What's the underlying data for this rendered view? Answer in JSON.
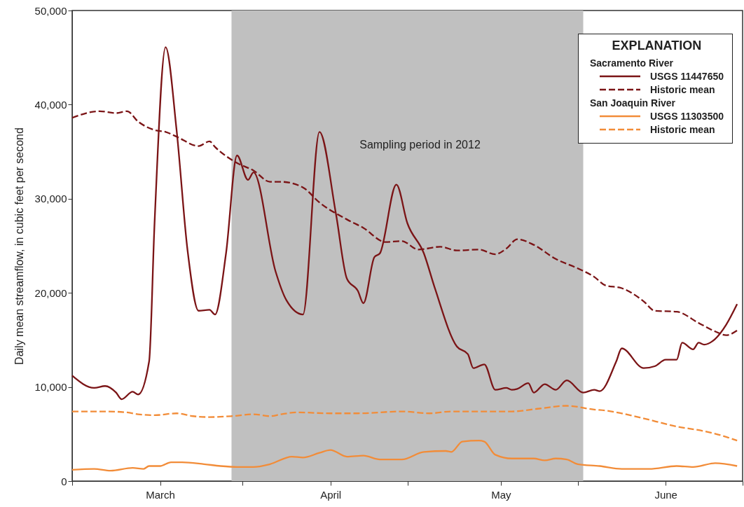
{
  "chart_data": {
    "type": "line",
    "xlabel": null,
    "ylabel": "Daily mean streamflow, in cubic feet per second",
    "legend_title": "EXPLANATION",
    "annotations": [
      "Sacramento River",
      "San Joaquin River"
    ],
    "xlim": [
      "--03-01",
      "--07-01"
    ],
    "xticks": [
      {
        "value": "--03-01",
        "label": null
      },
      {
        "value": "--03-17",
        "label": "March"
      },
      {
        "value": "--04-01",
        "label": null
      },
      {
        "value": "--04-17",
        "label": "April"
      },
      {
        "value": "--05-01",
        "label": null
      },
      {
        "value": "--05-18",
        "label": "May"
      },
      {
        "value": "--06-01",
        "label": null
      },
      {
        "value": "--06-17",
        "label": "June"
      },
      {
        "value": "--07-01",
        "label": null
      }
    ],
    "ylim": [
      0,
      50000
    ],
    "yticks": [
      0,
      {
        "value": 10000,
        "label": "10,000"
      },
      {
        "value": 20000,
        "label": "20,000"
      },
      {
        "value": 30000,
        "label": "30,000"
      },
      {
        "value": 40000,
        "label": "40,000"
      },
      {
        "value": 50000,
        "label": "50,000"
      }
    ],
    "grid": false,
    "legend": "top right",
    "bands": [
      {
        "axis": "x",
        "from": "--03-30",
        "to": "--06-02",
        "label": "Sampling period in 2012",
        "color": "#c0c0c0"
      }
    ],
    "series": [
      {
        "name": "USGS 11447650",
        "color": "#7b1416",
        "line_style": "solid",
        "x": [
          "--03-01",
          "--03-05",
          "--03-07",
          "--03-09",
          "--03-10",
          "--03-12",
          "--03-13",
          "--03-15",
          "--03-16",
          "--03-18",
          "--03-20",
          "--03-22",
          "--03-24",
          "--03-26",
          "--03-27",
          "--03-29",
          "--03-31",
          "--04-02",
          "--04-03",
          "--04-07",
          "--04-09",
          "--04-12",
          "--04-15",
          "--04-18",
          "--04-20",
          "--04-22",
          "--04-23",
          "--04-25",
          "--04-26",
          "--04-29",
          "--05-01",
          "--05-04",
          "--05-06",
          "--05-10",
          "--05-12",
          "--05-13",
          "--05-15",
          "--05-17",
          "--05-19",
          "--05-20",
          "--05-21",
          "--05-23",
          "--05-24",
          "--05-26",
          "--05-28",
          "--05-30",
          "--06-02",
          "--06-04",
          "--06-05",
          "--06-08",
          "--06-09",
          "--06-13",
          "--06-15",
          "--06-17",
          "--06-19",
          "--06-20",
          "--06-22",
          "--06-23",
          "--06-24",
          "--06-26",
          "--06-28",
          "--06-30"
        ],
        "values": [
          11200,
          9900,
          10100,
          9400,
          8700,
          9500,
          9200,
          12700,
          27500,
          46100,
          37300,
          24500,
          18100,
          18200,
          17700,
          24200,
          34600,
          32000,
          32800,
          22300,
          19200,
          17700,
          37100,
          28400,
          21500,
          20200,
          18900,
          23800,
          24200,
          31500,
          27400,
          24200,
          20500,
          14300,
          13500,
          12000,
          12400,
          9700,
          9900,
          9700,
          9800,
          10400,
          9400,
          10300,
          9700,
          10700,
          9400,
          9700,
          9550,
          12700,
          14100,
          12000,
          12200,
          12900,
          12900,
          14700,
          14000,
          14700,
          14500,
          15100,
          16600,
          18800
        ]
      },
      {
        "name": "Historic mean",
        "color": "#7b1416",
        "line_style": "dashed",
        "x": [
          "--03-01",
          "--03-06",
          "--03-09",
          "--03-11",
          "--03-13",
          "--03-16",
          "--03-18",
          "--03-20",
          "--03-24",
          "--03-26",
          "--03-27",
          "--03-31",
          "--04-03",
          "--04-06",
          "--04-08",
          "--04-12",
          "--04-15",
          "--04-20",
          "--04-23",
          "--04-27",
          "--04-30",
          "--05-03",
          "--05-07",
          "--05-10",
          "--05-14",
          "--05-17",
          "--05-19",
          "--05-21",
          "--05-24",
          "--05-28",
          "--06-01",
          "--06-04",
          "--06-06",
          "--06-09",
          "--06-13",
          "--06-15",
          "--06-19",
          "--06-23",
          "--06-26",
          "--06-28",
          "--06-30"
        ],
        "values": [
          38600,
          39300,
          39100,
          39300,
          38200,
          37300,
          37100,
          36600,
          35600,
          36100,
          35500,
          33800,
          33000,
          31800,
          31800,
          31200,
          29600,
          27800,
          26900,
          25400,
          25500,
          24600,
          24900,
          24500,
          24600,
          24100,
          24700,
          25700,
          25100,
          23600,
          22600,
          21700,
          20800,
          20500,
          19100,
          18100,
          18000,
          16800,
          15900,
          15500,
          16000
        ]
      },
      {
        "name": "USGS 11303500",
        "color": "#f28c38",
        "line_style": "solid",
        "x": [
          "--03-01",
          "--03-05",
          "--03-08",
          "--03-12",
          "--03-14",
          "--03-15",
          "--03-17",
          "--03-19",
          "--03-21",
          "--03-25",
          "--03-28",
          "--03-31",
          "--04-03",
          "--04-06",
          "--04-10",
          "--04-12",
          "--04-15",
          "--04-17",
          "--04-20",
          "--04-23",
          "--04-26",
          "--04-30",
          "--05-04",
          "--05-08",
          "--05-09",
          "--05-11",
          "--05-14",
          "--05-15",
          "--05-17",
          "--05-20",
          "--05-24",
          "--05-26",
          "--05-28",
          "--05-30",
          "--06-01",
          "--06-05",
          "--06-09",
          "--06-14",
          "--06-19",
          "--06-22",
          "--06-26",
          "--06-30"
        ],
        "values": [
          1200,
          1300,
          1100,
          1400,
          1300,
          1600,
          1600,
          2000,
          2000,
          1800,
          1600,
          1500,
          1500,
          1800,
          2600,
          2500,
          3000,
          3300,
          2600,
          2700,
          2300,
          2300,
          3100,
          3200,
          3100,
          4200,
          4300,
          4200,
          2800,
          2400,
          2400,
          2200,
          2400,
          2300,
          1800,
          1600,
          1300,
          1300,
          1600,
          1500,
          1900,
          1600
        ]
      },
      {
        "name": "Historic mean",
        "color": "#f28c38",
        "line_style": "dashed",
        "x": [
          "--03-01",
          "--03-07",
          "--03-11",
          "--03-13",
          "--03-16",
          "--03-20",
          "--03-23",
          "--03-26",
          "--03-30",
          "--04-03",
          "--04-06",
          "--04-08",
          "--04-11",
          "--04-17",
          "--04-22",
          "--04-30",
          "--05-05",
          "--05-09",
          "--05-14",
          "--05-20",
          "--05-25",
          "--05-30",
          "--06-04",
          "--06-06",
          "--06-12",
          "--06-19",
          "--06-24",
          "--06-28",
          "--06-30"
        ],
        "values": [
          7400,
          7400,
          7300,
          7100,
          7000,
          7200,
          6900,
          6800,
          6900,
          7100,
          6900,
          7100,
          7300,
          7200,
          7200,
          7400,
          7200,
          7400,
          7400,
          7400,
          7700,
          8000,
          7600,
          7500,
          6800,
          5800,
          5300,
          4700,
          4300
        ]
      }
    ]
  }
}
